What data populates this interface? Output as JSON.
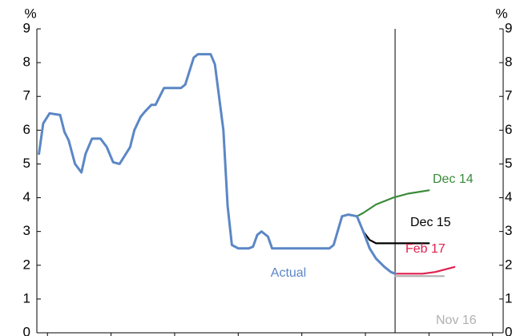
{
  "chart_data": {
    "type": "line",
    "y_unit": "%",
    "y2_unit": "%",
    "xlim": [
      1999.5,
      2021.5
    ],
    "xticks": [
      2000,
      2003,
      2006,
      2009,
      2012,
      2015,
      2018,
      2021
    ],
    "ylim": [
      0,
      9
    ],
    "yticks": [
      0,
      1,
      2,
      3,
      4,
      5,
      6,
      7,
      8,
      9
    ],
    "y2lim": [
      0,
      9
    ],
    "y2ticks": [
      0,
      1,
      2,
      3,
      4,
      5,
      6,
      7,
      8,
      9
    ],
    "vline": 2016.4,
    "series": [
      {
        "name": "Actual",
        "color": "#5b87c5",
        "x": [
          1999.6,
          1999.8,
          2000.1,
          2000.6,
          2000.8,
          2001.0,
          2001.3,
          2001.6,
          2001.8,
          2002.1,
          2002.5,
          2002.8,
          2003.1,
          2003.4,
          2003.6,
          2003.9,
          2004.1,
          2004.4,
          2004.6,
          2004.9,
          2005.1,
          2005.3,
          2005.5,
          2006.3,
          2006.5,
          2006.9,
          2007.1,
          2007.7,
          2007.9,
          2008.3,
          2008.5,
          2008.7,
          2009.0,
          2009.5,
          2009.7,
          2009.9,
          2010.1,
          2010.4,
          2010.6,
          2013.3,
          2013.5,
          2013.9,
          2014.2,
          2014.6,
          2014.9,
          2015.2,
          2015.5,
          2015.9,
          2016.2,
          2016.4
        ],
        "values": [
          5.3,
          6.2,
          6.5,
          6.45,
          5.95,
          5.7,
          5.0,
          4.75,
          5.3,
          5.75,
          5.75,
          5.5,
          5.05,
          5.0,
          5.2,
          5.5,
          6.0,
          6.4,
          6.55,
          6.75,
          6.75,
          7.0,
          7.25,
          7.25,
          7.35,
          8.15,
          8.25,
          8.25,
          7.95,
          6.0,
          3.75,
          2.6,
          2.5,
          2.5,
          2.55,
          2.9,
          3.0,
          2.85,
          2.5,
          2.5,
          2.6,
          3.45,
          3.5,
          3.45,
          3.0,
          2.5,
          2.2,
          1.95,
          1.8,
          1.75
        ]
      },
      {
        "name": "Dec 14",
        "color": "#3a8a3a",
        "x": [
          2014.6,
          2014.9,
          2015.5,
          2016.3,
          2017.0,
          2018.0
        ],
        "values": [
          3.45,
          3.55,
          3.8,
          4.0,
          4.12,
          4.22
        ]
      },
      {
        "name": "Dec 15",
        "color": "#000000",
        "x": [
          2014.9,
          2015.2,
          2015.5,
          2018.0
        ],
        "values": [
          3.0,
          2.75,
          2.65,
          2.65
        ]
      },
      {
        "name": "Feb 17",
        "color": "#e0204f",
        "x": [
          2016.4,
          2017.7,
          2018.3,
          2019.2
        ],
        "values": [
          1.75,
          1.75,
          1.8,
          1.95
        ]
      },
      {
        "name": "Nov 16",
        "color": "#b0b0b0",
        "x": [
          2016.4,
          2018.7
        ],
        "values": [
          1.68,
          1.68
        ]
      }
    ]
  }
}
